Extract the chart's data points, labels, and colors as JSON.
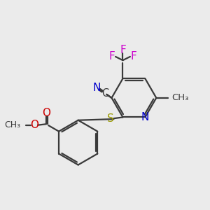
{
  "bg_color": "#ebebeb",
  "bond_color": "#3a3a3a",
  "bond_width": 1.6,
  "font_size": 11,
  "figsize": [
    3.0,
    3.0
  ],
  "dpi": 100,
  "xlim": [
    0,
    10
  ],
  "ylim": [
    0,
    10
  ],
  "colors": {
    "N": "#0000cc",
    "O": "#cc0000",
    "S": "#999900",
    "F": "#cc00cc",
    "C": "#3a3a3a"
  }
}
